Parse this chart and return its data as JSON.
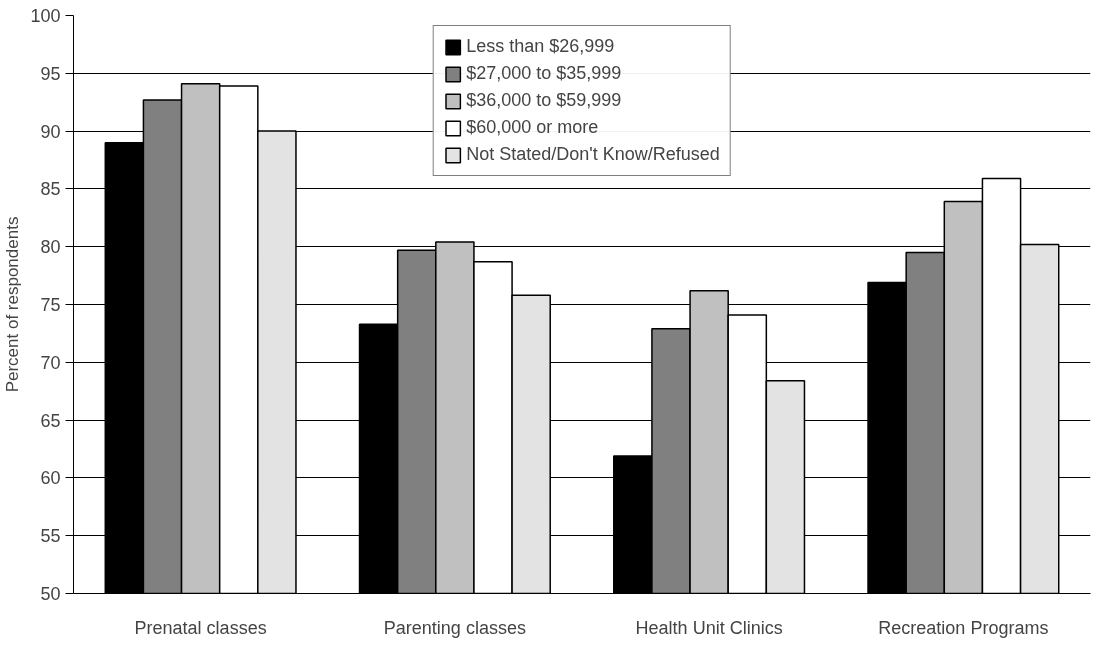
{
  "chart_data": {
    "type": "bar",
    "ylabel": "Percent of respondents",
    "categories": [
      "Prenatal classes",
      "Parenting classes",
      "Health Unit Clinics",
      "Recreation Programs"
    ],
    "series": [
      {
        "name": "Less than $26,999",
        "color": "#000000",
        "values": [
          89.0,
          73.3,
          61.9,
          76.9
        ]
      },
      {
        "name": "$27,000 to $35,999",
        "color": "#808080",
        "values": [
          92.7,
          79.7,
          72.9,
          79.5
        ]
      },
      {
        "name": "$36,000 to $59,999",
        "color": "#c0c0c0",
        "values": [
          94.1,
          80.4,
          76.2,
          83.9
        ]
      },
      {
        "name": "$60,000 or more",
        "color": "#ffffff",
        "values": [
          93.9,
          78.7,
          74.1,
          85.9
        ]
      },
      {
        "name": "Not Stated/Don't Know/Refused",
        "color": "#e3e3e3",
        "values": [
          90.0,
          75.8,
          68.4,
          80.2
        ]
      }
    ],
    "ylim": [
      50,
      100
    ],
    "yticks": [
      50,
      55,
      60,
      65,
      70,
      75,
      80,
      85,
      90,
      95,
      100
    ],
    "grid": "y",
    "legend": "top"
  }
}
